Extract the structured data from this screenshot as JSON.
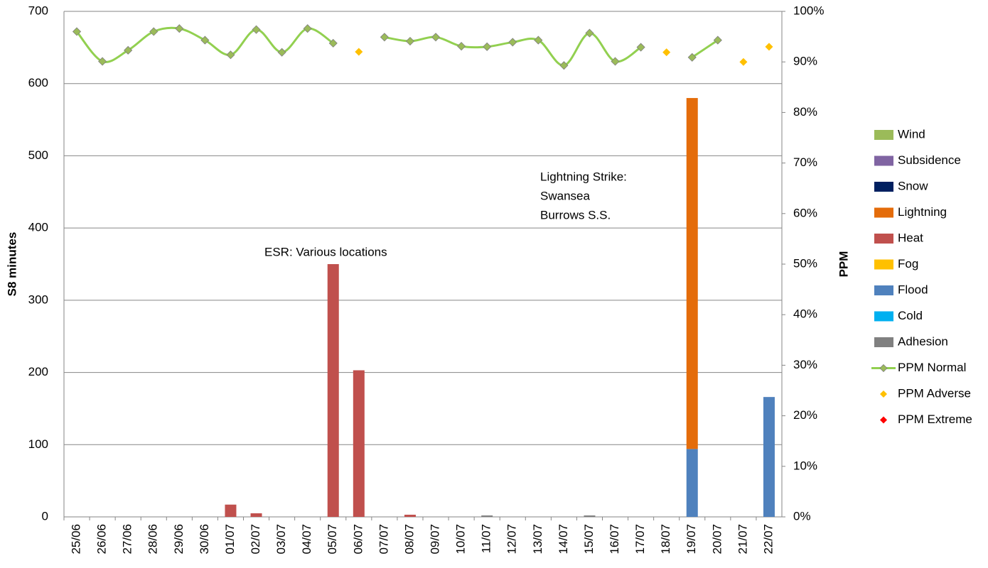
{
  "chart_data": {
    "type": "bar",
    "categories": [
      "25/06",
      "26/06",
      "27/06",
      "28/06",
      "29/06",
      "30/06",
      "01/07",
      "02/07",
      "03/07",
      "04/07",
      "05/07",
      "06/07",
      "07/07",
      "08/07",
      "09/07",
      "10/07",
      "11/07",
      "12/07",
      "13/07",
      "14/07",
      "15/07",
      "16/07",
      "17/07",
      "18/07",
      "19/07",
      "20/07",
      "21/07",
      "22/07"
    ],
    "y_label": "S8 minutes",
    "y2_label": "PPM",
    "ylim": [
      0,
      700
    ],
    "yticks": [
      0,
      100,
      200,
      300,
      400,
      500,
      600,
      700
    ],
    "y2lim": [
      0,
      100
    ],
    "y2ticks": [
      {
        "value": 0,
        "label": "0%"
      },
      {
        "value": 10,
        "label": "10%"
      },
      {
        "value": 20,
        "label": "20%"
      },
      {
        "value": 30,
        "label": "30%"
      },
      {
        "value": 40,
        "label": "40%"
      },
      {
        "value": 50,
        "label": "50%"
      },
      {
        "value": 60,
        "label": "60%"
      },
      {
        "value": 70,
        "label": "70%"
      },
      {
        "value": 80,
        "label": "80%"
      },
      {
        "value": 90,
        "label": "90%"
      },
      {
        "value": 100,
        "label": "100%"
      }
    ],
    "grid": true,
    "legend": "right",
    "series": [
      {
        "name": "Wind",
        "color": "#9bbb59",
        "values": [
          0,
          0,
          0,
          0,
          0,
          0,
          0,
          0,
          0,
          0,
          0,
          0,
          0,
          0,
          0,
          0,
          0,
          0,
          0,
          0,
          0,
          0,
          0,
          0,
          0,
          0,
          0,
          0
        ]
      },
      {
        "name": "Subsidence",
        "color": "#8064a2",
        "values": [
          0,
          0,
          0,
          0,
          0,
          0,
          0,
          0,
          0,
          0,
          0,
          0,
          0,
          0,
          0,
          0,
          0,
          0,
          0,
          0,
          0,
          0,
          0,
          0,
          0,
          0,
          0,
          0
        ]
      },
      {
        "name": "Snow",
        "color": "#002060",
        "values": [
          0,
          0,
          0,
          0,
          0,
          0,
          0,
          0,
          0,
          0,
          0,
          0,
          0,
          0,
          0,
          0,
          0,
          0,
          0,
          0,
          0,
          0,
          0,
          0,
          0,
          0,
          0,
          0
        ]
      },
      {
        "name": "Lightning",
        "color": "#e46c0a",
        "values": [
          0,
          0,
          0,
          0,
          0,
          0,
          0,
          0,
          0,
          0,
          0,
          0,
          0,
          0,
          0,
          0,
          0,
          0,
          0,
          0,
          0,
          0,
          0,
          0,
          486,
          0,
          0,
          0
        ]
      },
      {
        "name": "Heat",
        "color": "#c0504d",
        "values": [
          0,
          0,
          0,
          0,
          0,
          0,
          17,
          5,
          0,
          0,
          350,
          203,
          0,
          3,
          0,
          0,
          0,
          0,
          0,
          0,
          0,
          0,
          0,
          0,
          0,
          0,
          0,
          0
        ]
      },
      {
        "name": "Fog",
        "color": "#ffc000",
        "values": [
          0,
          0,
          0,
          0,
          0,
          0,
          0,
          0,
          0,
          0,
          0,
          0,
          0,
          0,
          0,
          0,
          0,
          0,
          0,
          0,
          0,
          0,
          0,
          0,
          0,
          0,
          0,
          0
        ]
      },
      {
        "name": "Flood",
        "color": "#4f81bd",
        "values": [
          0,
          0,
          0,
          0,
          0,
          0,
          0,
          0,
          0,
          0,
          0,
          0,
          0,
          0,
          0,
          0,
          0,
          0,
          0,
          0,
          0,
          0,
          0,
          0,
          94,
          0,
          0,
          166
        ]
      },
      {
        "name": "Cold",
        "color": "#00b0f0",
        "values": [
          0,
          0,
          0,
          0,
          0,
          0,
          0,
          0,
          0,
          0,
          0,
          0,
          0,
          0,
          0,
          0,
          0,
          0,
          0,
          0,
          0,
          0,
          0,
          0,
          0,
          0,
          0,
          0
        ]
      },
      {
        "name": "Adhesion",
        "color": "#808080",
        "values": [
          0,
          0,
          0,
          0,
          0,
          0,
          0,
          0,
          0,
          0,
          0,
          0,
          0,
          0,
          0,
          0,
          2,
          0,
          0,
          0,
          2,
          0,
          0,
          0,
          0,
          0,
          0,
          0
        ]
      },
      {
        "name": "PPM Normal",
        "type": "line",
        "axis": "y2",
        "color": "#92d050",
        "marker_color": "#9bbb59",
        "values": [
          96.0,
          90.1,
          92.3,
          96.0,
          96.6,
          94.3,
          91.4,
          96.4,
          91.9,
          96.6,
          93.7,
          null,
          94.9,
          94.1,
          94.9,
          93.1,
          93.0,
          93.9,
          94.3,
          89.3,
          95.7,
          90.1,
          92.9,
          null,
          90.9,
          94.3,
          null,
          null
        ]
      },
      {
        "name": "PPM Adverse",
        "type": "scatter",
        "axis": "y2",
        "color": "#ffc000",
        "values": [
          null,
          null,
          null,
          null,
          null,
          null,
          null,
          null,
          null,
          null,
          null,
          92.0,
          null,
          null,
          null,
          null,
          null,
          null,
          null,
          null,
          null,
          null,
          null,
          91.9,
          null,
          null,
          90.0,
          93.0
        ]
      },
      {
        "name": "PPM Extreme",
        "type": "scatter",
        "axis": "y2",
        "color": "#ff0000",
        "values": [
          null,
          null,
          null,
          null,
          null,
          null,
          null,
          null,
          null,
          null,
          null,
          null,
          null,
          null,
          null,
          null,
          null,
          null,
          null,
          null,
          null,
          null,
          null,
          null,
          null,
          null,
          null,
          null
        ]
      }
    ],
    "annotations": [
      {
        "lines": [
          "ESR: Various locations"
        ]
      },
      {
        "lines": [
          "Lightning Strike:",
          "Swansea",
          "Burrows S.S."
        ]
      }
    ]
  }
}
